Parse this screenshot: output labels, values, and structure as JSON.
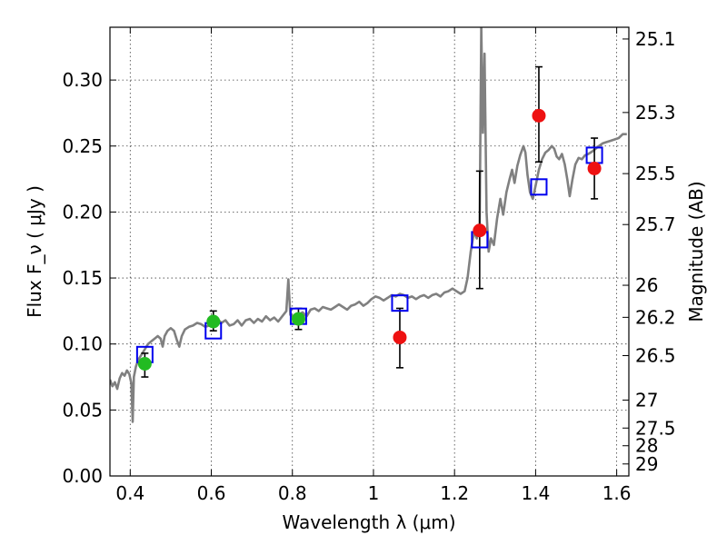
{
  "chart_data": {
    "type": "scatter",
    "title": "",
    "xlabel": "Wavelength  λ (μm)",
    "ylabel": "Flux  F_ν  ( μJy )",
    "ylabel_right": "Magnitude (AB)",
    "xlim": [
      0.35,
      1.63
    ],
    "ylim": [
      0.0,
      0.34
    ],
    "grid": true,
    "x_ticks": [
      0.4,
      0.6,
      0.8,
      1.0,
      1.2,
      1.4,
      1.6
    ],
    "x_tick_labels": [
      "0.4",
      "0.6",
      "0.8",
      "1",
      "1.2",
      "1.4",
      "1.6"
    ],
    "y_ticks": [
      0.0,
      0.05,
      0.1,
      0.15,
      0.2,
      0.25,
      0.3
    ],
    "y_tick_labels": [
      "0.00",
      "0.05",
      "0.10",
      "0.15",
      "0.20",
      "0.25",
      "0.30"
    ],
    "right_ticks": [
      {
        "label": "25.1",
        "flux": 0.3311
      },
      {
        "label": "25.3",
        "flux": 0.2754
      },
      {
        "label": "25.5",
        "flux": 0.2291
      },
      {
        "label": "25.7",
        "flux": 0.1905
      },
      {
        "label": "26",
        "flux": 0.1445
      },
      {
        "label": "26.2",
        "flux": 0.1202
      },
      {
        "label": "26.5",
        "flux": 0.0912
      },
      {
        "label": "27",
        "flux": 0.0575
      },
      {
        "label": "27.5",
        "flux": 0.0363
      },
      {
        "label": "28",
        "flux": 0.0229
      },
      {
        "label": "29",
        "flux": 0.0091
      }
    ],
    "colors": {
      "spectrum": "#808080",
      "model": "#0000ee",
      "green": "#22bb22",
      "red": "#ee1111",
      "errorbar": "#000000"
    },
    "spectrum": {
      "name": "",
      "points": [
        [
          0.35,
          0.073
        ],
        [
          0.356,
          0.068
        ],
        [
          0.362,
          0.071
        ],
        [
          0.368,
          0.066
        ],
        [
          0.374,
          0.074
        ],
        [
          0.38,
          0.078
        ],
        [
          0.386,
          0.076
        ],
        [
          0.392,
          0.08
        ],
        [
          0.398,
          0.077
        ],
        [
          0.403,
          0.07
        ],
        [
          0.406,
          0.041
        ],
        [
          0.409,
          0.075
        ],
        [
          0.414,
          0.083
        ],
        [
          0.42,
          0.088
        ],
        [
          0.428,
          0.092
        ],
        [
          0.436,
          0.096
        ],
        [
          0.444,
          0.1
        ],
        [
          0.452,
          0.102
        ],
        [
          0.46,
          0.104
        ],
        [
          0.468,
          0.106
        ],
        [
          0.475,
          0.104
        ],
        [
          0.48,
          0.098
        ],
        [
          0.485,
          0.106
        ],
        [
          0.492,
          0.11
        ],
        [
          0.5,
          0.112
        ],
        [
          0.508,
          0.11
        ],
        [
          0.515,
          0.103
        ],
        [
          0.521,
          0.098
        ],
        [
          0.527,
          0.106
        ],
        [
          0.535,
          0.111
        ],
        [
          0.545,
          0.113
        ],
        [
          0.555,
          0.114
        ],
        [
          0.565,
          0.116
        ],
        [
          0.575,
          0.115
        ],
        [
          0.585,
          0.113
        ],
        [
          0.595,
          0.114
        ],
        [
          0.605,
          0.117
        ],
        [
          0.615,
          0.119
        ],
        [
          0.625,
          0.116
        ],
        [
          0.635,
          0.118
        ],
        [
          0.645,
          0.114
        ],
        [
          0.655,
          0.115
        ],
        [
          0.665,
          0.118
        ],
        [
          0.675,
          0.114
        ],
        [
          0.685,
          0.118
        ],
        [
          0.695,
          0.119
        ],
        [
          0.705,
          0.116
        ],
        [
          0.715,
          0.119
        ],
        [
          0.725,
          0.117
        ],
        [
          0.735,
          0.121
        ],
        [
          0.745,
          0.118
        ],
        [
          0.755,
          0.12
        ],
        [
          0.765,
          0.117
        ],
        [
          0.775,
          0.121
        ],
        [
          0.785,
          0.125
        ],
        [
          0.79,
          0.149
        ],
        [
          0.795,
          0.122
        ],
        [
          0.805,
          0.12
        ],
        [
          0.815,
          0.122
        ],
        [
          0.825,
          0.124
        ],
        [
          0.835,
          0.121
        ],
        [
          0.845,
          0.126
        ],
        [
          0.855,
          0.127
        ],
        [
          0.865,
          0.125
        ],
        [
          0.875,
          0.128
        ],
        [
          0.885,
          0.127
        ],
        [
          0.895,
          0.126
        ],
        [
          0.905,
          0.128
        ],
        [
          0.915,
          0.13
        ],
        [
          0.925,
          0.128
        ],
        [
          0.935,
          0.126
        ],
        [
          0.945,
          0.129
        ],
        [
          0.955,
          0.13
        ],
        [
          0.965,
          0.132
        ],
        [
          0.975,
          0.129
        ],
        [
          0.985,
          0.131
        ],
        [
          0.995,
          0.134
        ],
        [
          1.005,
          0.136
        ],
        [
          1.015,
          0.135
        ],
        [
          1.025,
          0.133
        ],
        [
          1.035,
          0.135
        ],
        [
          1.045,
          0.137
        ],
        [
          1.055,
          0.136
        ],
        [
          1.065,
          0.138
        ],
        [
          1.075,
          0.137
        ],
        [
          1.085,
          0.135
        ],
        [
          1.095,
          0.136
        ],
        [
          1.105,
          0.134
        ],
        [
          1.115,
          0.136
        ],
        [
          1.125,
          0.137
        ],
        [
          1.135,
          0.135
        ],
        [
          1.145,
          0.137
        ],
        [
          1.155,
          0.138
        ],
        [
          1.165,
          0.136
        ],
        [
          1.175,
          0.139
        ],
        [
          1.185,
          0.14
        ],
        [
          1.195,
          0.142
        ],
        [
          1.205,
          0.14
        ],
        [
          1.215,
          0.138
        ],
        [
          1.225,
          0.14
        ],
        [
          1.232,
          0.15
        ],
        [
          1.24,
          0.17
        ],
        [
          1.248,
          0.185
        ],
        [
          1.255,
          0.18
        ],
        [
          1.262,
          0.19
        ],
        [
          1.266,
          0.34
        ],
        [
          1.27,
          0.26
        ],
        [
          1.274,
          0.32
        ],
        [
          1.279,
          0.2
        ],
        [
          1.284,
          0.17
        ],
        [
          1.29,
          0.18
        ],
        [
          1.297,
          0.175
        ],
        [
          1.305,
          0.195
        ],
        [
          1.313,
          0.21
        ],
        [
          1.32,
          0.198
        ],
        [
          1.328,
          0.215
        ],
        [
          1.336,
          0.225
        ],
        [
          1.342,
          0.232
        ],
        [
          1.348,
          0.222
        ],
        [
          1.355,
          0.235
        ],
        [
          1.362,
          0.243
        ],
        [
          1.37,
          0.25
        ],
        [
          1.375,
          0.245
        ],
        [
          1.38,
          0.228
        ],
        [
          1.386,
          0.215
        ],
        [
          1.393,
          0.21
        ],
        [
          1.4,
          0.22
        ],
        [
          1.408,
          0.232
        ],
        [
          1.416,
          0.24
        ],
        [
          1.424,
          0.245
        ],
        [
          1.432,
          0.247
        ],
        [
          1.44,
          0.25
        ],
        [
          1.446,
          0.248
        ],
        [
          1.452,
          0.242
        ],
        [
          1.458,
          0.24
        ],
        [
          1.465,
          0.244
        ],
        [
          1.472,
          0.236
        ],
        [
          1.478,
          0.225
        ],
        [
          1.484,
          0.212
        ],
        [
          1.491,
          0.225
        ],
        [
          1.498,
          0.236
        ],
        [
          1.506,
          0.241
        ],
        [
          1.514,
          0.24
        ],
        [
          1.522,
          0.243
        ],
        [
          1.53,
          0.244
        ],
        [
          1.54,
          0.246
        ],
        [
          1.548,
          0.248
        ],
        [
          1.556,
          0.25
        ],
        [
          1.565,
          0.252
        ],
        [
          1.575,
          0.253
        ],
        [
          1.585,
          0.254
        ],
        [
          1.595,
          0.255
        ],
        [
          1.605,
          0.256
        ],
        [
          1.615,
          0.259
        ],
        [
          1.625,
          0.259
        ]
      ]
    },
    "model_points": {
      "name": "",
      "points": [
        [
          0.436,
          0.092
        ],
        [
          0.605,
          0.11
        ],
        [
          0.815,
          0.121
        ],
        [
          1.065,
          0.131
        ],
        [
          1.262,
          0.179
        ],
        [
          1.408,
          0.219
        ],
        [
          1.545,
          0.243
        ]
      ]
    },
    "green_points": {
      "name": "",
      "points": [
        {
          "x": 0.436,
          "y": 0.085,
          "err_low": 0.075,
          "err_high": 0.093
        },
        {
          "x": 0.605,
          "y": 0.117,
          "err_low": 0.11,
          "err_high": 0.125
        },
        {
          "x": 0.815,
          "y": 0.119,
          "err_low": 0.111,
          "err_high": 0.127
        }
      ]
    },
    "red_points": {
      "name": "",
      "points": [
        {
          "x": 1.065,
          "y": 0.105,
          "err_low": 0.082,
          "err_high": 0.127
        },
        {
          "x": 1.262,
          "y": 0.186,
          "err_low": 0.142,
          "err_high": 0.231
        },
        {
          "x": 1.408,
          "y": 0.273,
          "err_low": 0.238,
          "err_high": 0.31
        },
        {
          "x": 1.545,
          "y": 0.233,
          "err_low": 0.21,
          "err_high": 0.256
        }
      ]
    }
  }
}
